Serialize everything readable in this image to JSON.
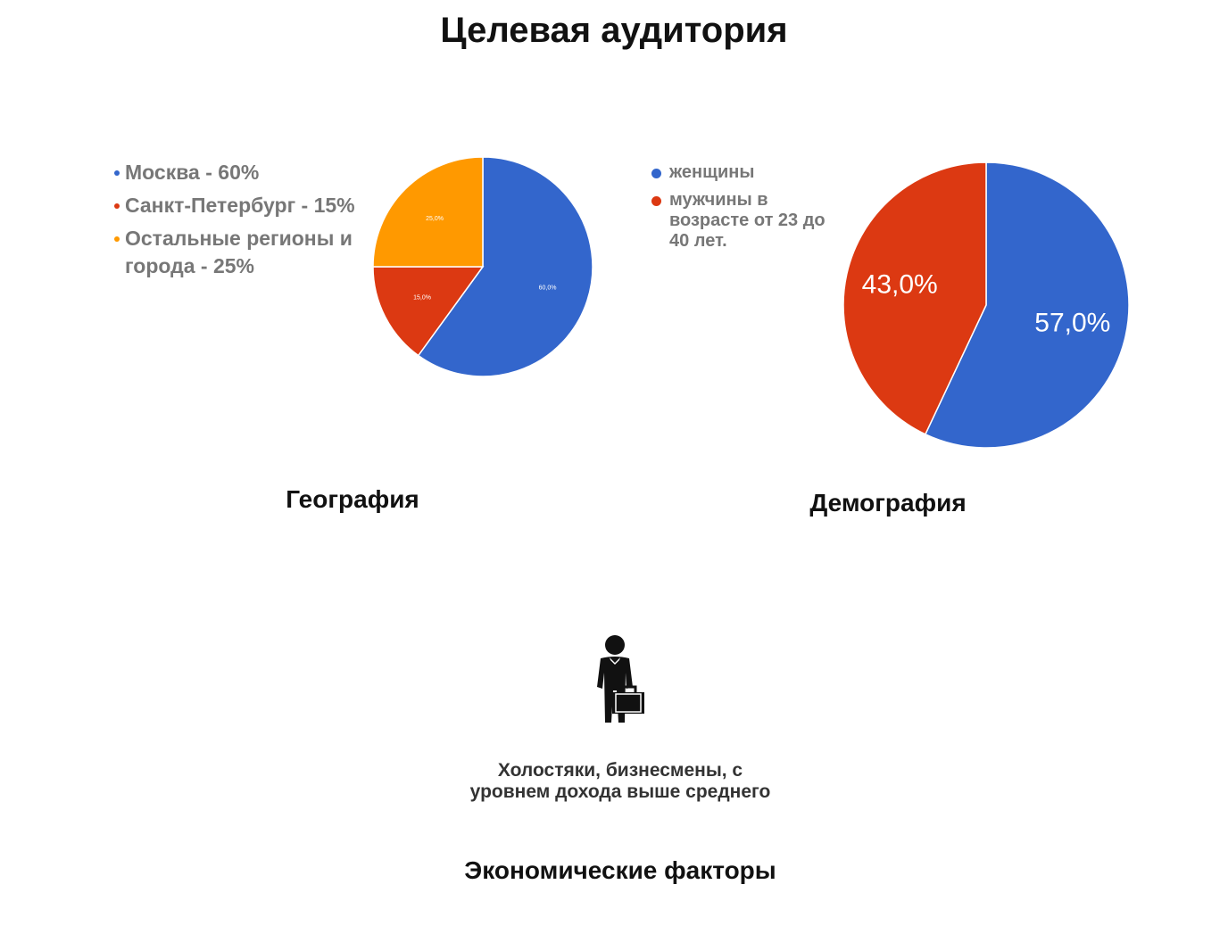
{
  "title": "Целевая аудитория",
  "colors": {
    "blue": "#3366cc",
    "red": "#dc3912",
    "orange": "#ff9900"
  },
  "chart_data": [
    {
      "type": "pie",
      "title": "География",
      "legend_position": "left",
      "legend": [
        "Москва - 60%",
        "Санкт-Петербург - 15%",
        "Остальные регионы и города - 25%"
      ],
      "slices": [
        {
          "value": 60,
          "label": "60,0%",
          "color": "#3366cc"
        },
        {
          "value": 15,
          "label": "15,0%",
          "color": "#dc3912"
        },
        {
          "value": 25,
          "label": "25,0%",
          "color": "#ff9900"
        }
      ]
    },
    {
      "type": "pie",
      "title": "Демография",
      "legend_position": "left",
      "legend": [
        "женщины",
        "мужчины в возрасте от 23 до 40 лет."
      ],
      "slices": [
        {
          "value": 57,
          "label": "57,0%",
          "color": "#3366cc"
        },
        {
          "value": 43,
          "label": "43,0%",
          "color": "#dc3912"
        }
      ]
    }
  ],
  "economic": {
    "icon": "businessman-icon",
    "caption": "Холостяки, бизнесмены, с уровнем дохода выше среднего",
    "title": "Экономические факторы"
  }
}
